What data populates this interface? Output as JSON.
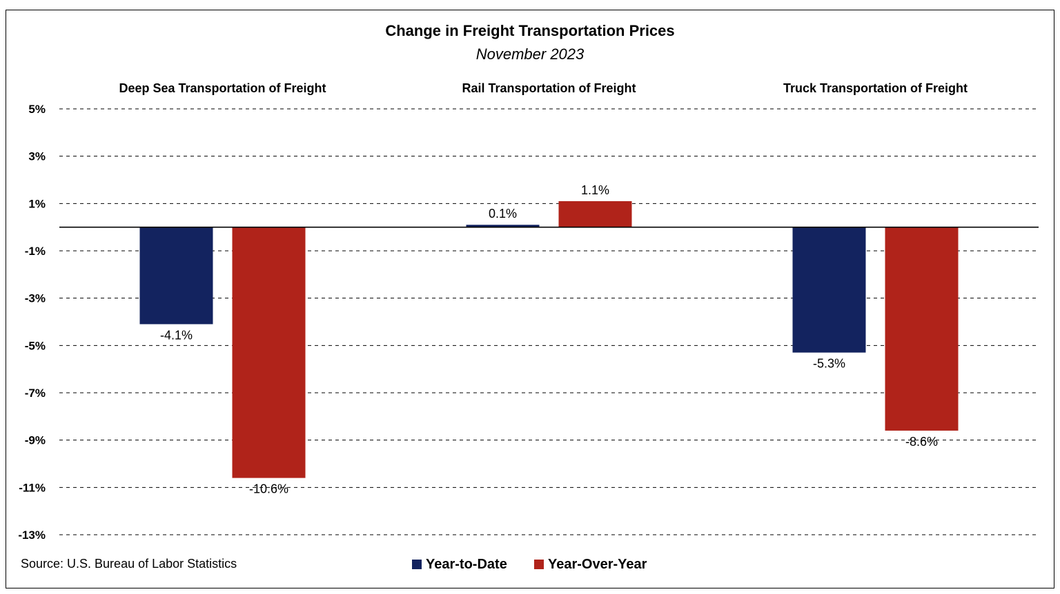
{
  "chart_data": {
    "type": "bar",
    "title": "Change in Freight Transportation Prices",
    "subtitle": "November 2023",
    "categories": [
      "Deep Sea Transportation of Freight",
      "Rail Transportation of Freight",
      "Truck Transportation of Freight"
    ],
    "series": [
      {
        "name": "Year-to-Date",
        "values": [
          -4.1,
          0.1,
          -5.3
        ],
        "labels": [
          "-4.1%",
          "0.1%",
          "-5.3%"
        ]
      },
      {
        "name": "Year-Over-Year",
        "values": [
          -10.6,
          1.1,
          -8.6
        ],
        "labels": [
          "-10.6%",
          "1.1%",
          "-8.6%"
        ]
      }
    ],
    "ylim": [
      -13,
      5
    ],
    "yticks": [
      5,
      3,
      1,
      -1,
      -3,
      -5,
      -7,
      -9,
      -11,
      -13
    ],
    "ytick_labels": [
      "5%",
      "3%",
      "1%",
      "-1%",
      "-3%",
      "-5%",
      "-7%",
      "-9%",
      "-11%",
      "-13%"
    ],
    "xlabel": "",
    "ylabel": "",
    "grid": "dashed horizontal",
    "legend": "bottom-center",
    "source": "Source: U.S. Bureau of Labor Statistics",
    "colors": {
      "Year-to-Date": "#13235f",
      "Year-Over-Year": "#b0231a"
    }
  }
}
